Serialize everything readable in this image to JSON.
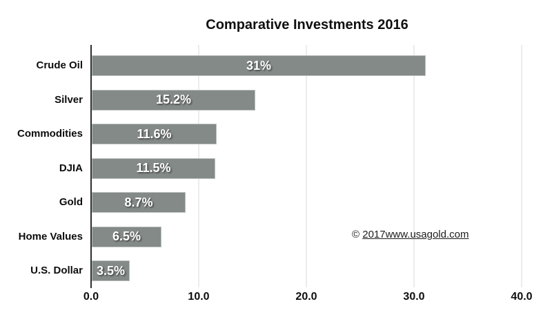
{
  "chart_data": {
    "type": "bar",
    "orientation": "horizontal",
    "title": "Comparative Investments 2016",
    "categories": [
      "Crude Oil",
      "Silver",
      "Commodities",
      "DJIA",
      "Gold",
      "Home Values",
      "U.S. Dollar"
    ],
    "values": [
      31,
      15.2,
      11.6,
      11.5,
      8.7,
      6.5,
      3.5
    ],
    "value_labels": [
      "31%",
      "15.2%",
      "11.6%",
      "11.5%",
      "8.7%",
      "6.5%",
      "3.5%"
    ],
    "xlim": [
      0,
      40
    ],
    "x_tick_labels": [
      "0.0",
      "10.0",
      "20.0",
      "30.0",
      "40.0"
    ],
    "x_tick_values": [
      0,
      10,
      20,
      30,
      40
    ],
    "grid": "vertical-only",
    "legend": "none",
    "annotation": "© 2017www.usagold.com",
    "colors": {
      "bar_fill": "#848a87",
      "bar_edge": "#bcc1bf",
      "gridline": "#ececec",
      "axis_line": "#2e2e2e",
      "title_text": "#101010",
      "label_text": "#0d0d0d",
      "bar_value_text": "#ffffff"
    }
  },
  "copyright": {
    "prefix": "© ",
    "link": "2017www.usagold.com"
  }
}
